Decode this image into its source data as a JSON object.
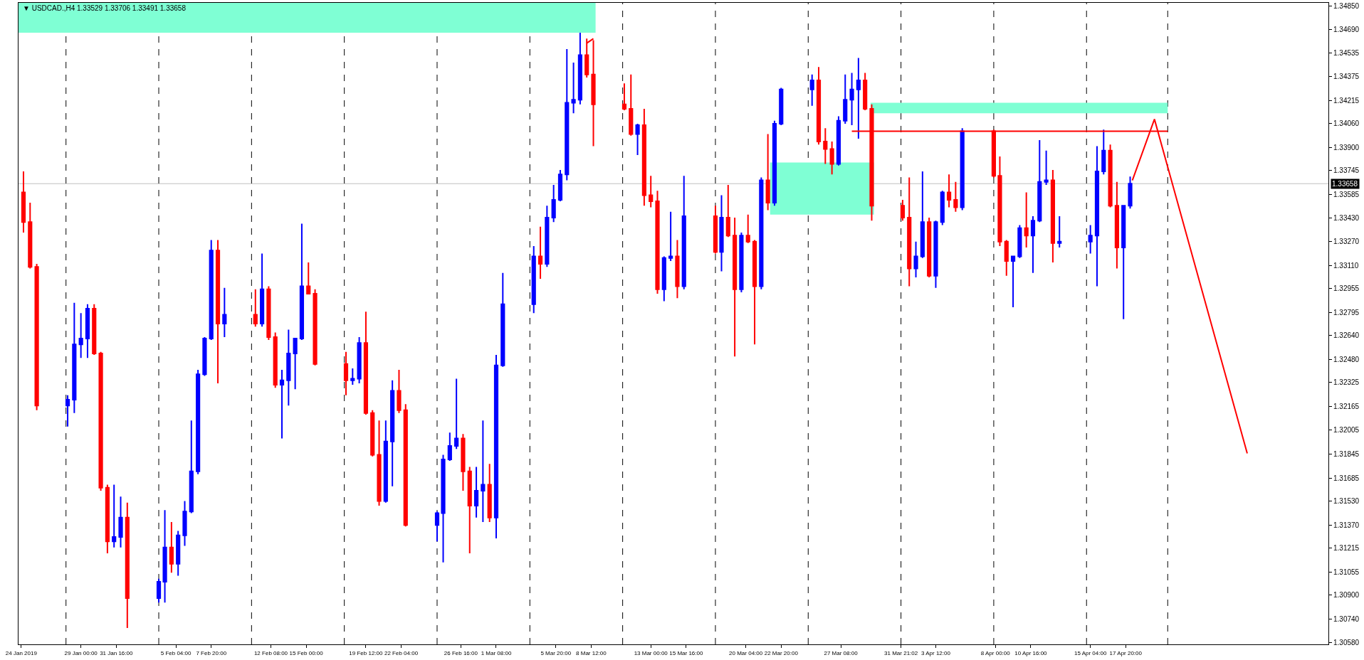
{
  "chart_data": {
    "type": "candlestick",
    "title": "▼ USDCAD.,H4 1.33529 1.33706 1.33491 1.33658",
    "x": [
      "2019-01-24T16:00",
      "2019-01-25T04:00",
      "2019-01-25T16:00",
      "2019-01-28T00:00",
      "2019-01-28T12:00",
      "2019-01-29T00:00",
      "2019-01-29T12:00",
      "2019-01-30T00:00",
      "2019-01-30T12:00",
      "2019-01-31T00:00",
      "2019-01-31T12:00",
      "2019-02-01T00:00",
      "2019-02-01T12:00",
      "2019-02-03T21:00",
      "2019-02-04T08:00",
      "2019-02-04T20:00",
      "2019-02-05T08:00",
      "2019-02-05T20:00",
      "2019-02-06T08:00",
      "2019-02-06T20:00",
      "2019-02-07T08:00",
      "2019-02-07T20:00",
      "2019-02-08T08:00",
      "2019-02-08T20:00",
      "2019-02-11T04:00",
      "2019-02-11T16:00",
      "2019-02-12T04:00",
      "2019-02-12T16:00",
      "2019-02-13T04:00",
      "2019-02-13T16:00",
      "2019-02-14T04:00",
      "2019-02-14T16:00",
      "2019-02-15T04:00",
      "2019-02-15T16:00",
      "2019-02-18T00:00",
      "2019-02-18T12:00",
      "2019-02-19T00:00",
      "2019-02-19T12:00",
      "2019-02-20T00:00",
      "2019-02-20T12:00",
      "2019-02-21T00:00",
      "2019-02-21T12:00",
      "2019-02-22T00:00",
      "2019-02-22T12:00",
      "2019-02-24T21:00",
      "2019-02-25T08:00",
      "2019-02-25T20:00",
      "2019-02-26T08:00",
      "2019-02-26T20:00",
      "2019-02-27T08:00",
      "2019-02-27T20:00",
      "2019-02-28T08:00",
      "2019-02-28T20:00",
      "2019-03-01T08:00",
      "2019-03-01T20:00",
      "2019-03-04T04:00",
      "2019-03-04T16:00",
      "2019-03-05T04:00",
      "2019-03-05T16:00",
      "2019-03-06T04:00",
      "2019-03-06T16:00",
      "2019-03-07T04:00",
      "2019-03-07T16:00",
      "2019-03-08T04:00",
      "2019-03-08T16:00",
      "2019-03-11T00:00",
      "2019-03-11T12:00",
      "2019-03-12T00:00",
      "2019-03-12T12:00",
      "2019-03-13T00:00",
      "2019-03-13T12:00",
      "2019-03-14T00:00",
      "2019-03-14T12:00",
      "2019-03-15T00:00",
      "2019-03-15T12:00",
      "2019-03-17T21:00",
      "2019-03-18T08:00",
      "2019-03-18T20:00",
      "2019-03-19T08:00",
      "2019-03-19T20:00",
      "2019-03-20T08:00",
      "2019-03-20T20:00",
      "2019-03-21T08:00",
      "2019-03-21T20:00",
      "2019-03-22T08:00",
      "2019-03-22T20:00",
      "2019-03-25T04:00",
      "2019-03-25T16:00",
      "2019-03-26T04:00",
      "2019-03-26T16:00",
      "2019-03-27T04:00",
      "2019-03-27T16:00",
      "2019-03-28T04:00",
      "2019-03-28T16:00",
      "2019-03-29T04:00",
      "2019-03-29T16:00",
      "2019-04-01T00:00",
      "2019-04-01T12:00",
      "2019-04-02T00:00",
      "2019-04-02T12:00",
      "2019-04-03T00:00",
      "2019-04-03T12:00",
      "2019-04-04T00:00",
      "2019-04-04T12:00",
      "2019-04-05T00:00",
      "2019-04-05T12:00",
      "2019-04-07T21:00",
      "2019-04-08T08:00",
      "2019-04-08T20:00",
      "2019-04-09T08:00",
      "2019-04-09T20:00",
      "2019-04-10T08:00",
      "2019-04-10T20:00",
      "2019-04-11T08:00",
      "2019-04-11T20:00",
      "2019-04-12T08:00",
      "2019-04-12T20:00",
      "2019-04-15T04:00",
      "2019-04-15T16:00",
      "2019-04-16T04:00",
      "2019-04-16T16:00",
      "2019-04-17T04:00",
      "2019-04-17T16:00",
      "2019-04-18T04:00"
    ],
    "ohlc": [
      [
        1.336,
        1.3374,
        1.3333,
        1.334
      ],
      [
        1.334,
        1.3353,
        1.3309,
        1.331
      ],
      [
        1.331,
        1.3312,
        1.3214,
        1.3217
      ],
      [
        1.3217,
        1.3224,
        1.3203,
        1.3221
      ],
      [
        1.3221,
        1.3286,
        1.3212,
        1.3258
      ],
      [
        1.3258,
        1.3279,
        1.3249,
        1.3262
      ],
      [
        1.3262,
        1.3285,
        1.3249,
        1.3282
      ],
      [
        1.3282,
        1.3285,
        1.3251,
        1.3252
      ],
      [
        1.3252,
        1.3253,
        1.316,
        1.3162
      ],
      [
        1.3162,
        1.3164,
        1.3118,
        1.3126
      ],
      [
        1.3126,
        1.3164,
        1.3122,
        1.3129
      ],
      [
        1.3129,
        1.3156,
        1.3122,
        1.3142
      ],
      [
        1.3142,
        1.3152,
        1.3068,
        1.3088
      ],
      [
        1.3088,
        1.3101,
        1.3085,
        1.3099
      ],
      [
        1.3099,
        1.3147,
        1.3085,
        1.3122
      ],
      [
        1.3122,
        1.3139,
        1.3105,
        1.3111
      ],
      [
        1.3111,
        1.3133,
        1.3103,
        1.313
      ],
      [
        1.313,
        1.3153,
        1.3123,
        1.3146
      ],
      [
        1.3146,
        1.3207,
        1.3145,
        1.3173
      ],
      [
        1.3173,
        1.3241,
        1.3171,
        1.3238
      ],
      [
        1.3238,
        1.3263,
        1.3237,
        1.3262
      ],
      [
        1.3262,
        1.3328,
        1.3261,
        1.3321
      ],
      [
        1.3321,
        1.3328,
        1.3232,
        1.3272
      ],
      [
        1.3272,
        1.3296,
        1.3263,
        1.3278
      ],
      [
        1.3278,
        1.3295,
        1.327,
        1.3272
      ],
      [
        1.3272,
        1.3319,
        1.327,
        1.3295
      ],
      [
        1.3295,
        1.3297,
        1.3261,
        1.3263
      ],
      [
        1.3263,
        1.3266,
        1.3229,
        1.3231
      ],
      [
        1.3231,
        1.3241,
        1.3195,
        1.3234
      ],
      [
        1.3234,
        1.3268,
        1.3217,
        1.3252
      ],
      [
        1.3252,
        1.3262,
        1.3228,
        1.3262
      ],
      [
        1.3262,
        1.3339,
        1.3261,
        1.3297
      ],
      [
        1.3297,
        1.3313,
        1.3292,
        1.3292
      ],
      [
        1.3292,
        1.3295,
        1.3244,
        1.3245
      ],
      [
        1.3245,
        1.3253,
        1.3224,
        1.3234
      ],
      [
        1.3234,
        1.3242,
        1.3231,
        1.3235
      ],
      [
        1.3235,
        1.3263,
        1.3232,
        1.3259
      ],
      [
        1.3259,
        1.328,
        1.3211,
        1.3212
      ],
      [
        1.3212,
        1.3214,
        1.3183,
        1.3184
      ],
      [
        1.3184,
        1.3207,
        1.315,
        1.3153
      ],
      [
        1.3153,
        1.3207,
        1.3152,
        1.3193
      ],
      [
        1.3193,
        1.3234,
        1.3163,
        1.3227
      ],
      [
        1.3227,
        1.3241,
        1.3212,
        1.3214
      ],
      [
        1.3214,
        1.3218,
        1.3136,
        1.3137
      ],
      [
        1.3137,
        1.3146,
        1.3126,
        1.3145
      ],
      [
        1.3145,
        1.3184,
        1.3112,
        1.3181
      ],
      [
        1.3181,
        1.3199,
        1.318,
        1.319
      ],
      [
        1.319,
        1.3235,
        1.3188,
        1.3195
      ],
      [
        1.3195,
        1.3198,
        1.316,
        1.3173
      ],
      [
        1.3173,
        1.3176,
        1.3118,
        1.315
      ],
      [
        1.315,
        1.3176,
        1.3142,
        1.316
      ],
      [
        1.316,
        1.3207,
        1.3139,
        1.3164
      ],
      [
        1.3164,
        1.3178,
        1.3139,
        1.3142
      ],
      [
        1.3142,
        1.3251,
        1.3128,
        1.3244
      ],
      [
        1.3244,
        1.3306,
        1.3243,
        1.3285
      ],
      [
        1.3285,
        1.3324,
        1.3279,
        1.3317
      ],
      [
        1.3317,
        1.3337,
        1.3302,
        1.3312
      ],
      [
        1.3312,
        1.3351,
        1.331,
        1.3343
      ],
      [
        1.3343,
        1.3365,
        1.334,
        1.3355
      ],
      [
        1.3355,
        1.3375,
        1.3354,
        1.3372
      ],
      [
        1.3372,
        1.3456,
        1.3368,
        1.342
      ],
      [
        1.342,
        1.3447,
        1.3413,
        1.3422
      ],
      [
        1.3422,
        1.3467,
        1.3419,
        1.3452
      ],
      [
        1.3452,
        1.3463,
        1.3437,
        1.3439
      ],
      [
        1.3439,
        1.3462,
        1.3391,
        1.3419
      ],
      [
        1.3419,
        1.3433,
        1.3415,
        1.3416
      ],
      [
        1.3416,
        1.3439,
        1.3398,
        1.3399
      ],
      [
        1.3399,
        1.3406,
        1.3385,
        1.3405
      ],
      [
        1.3405,
        1.3416,
        1.3351,
        1.3358
      ],
      [
        1.3358,
        1.3371,
        1.335,
        1.3354
      ],
      [
        1.3354,
        1.3361,
        1.3292,
        1.3295
      ],
      [
        1.3295,
        1.3317,
        1.3287,
        1.3316
      ],
      [
        1.3316,
        1.3347,
        1.3314,
        1.3317
      ],
      [
        1.3317,
        1.3328,
        1.3289,
        1.3297
      ],
      [
        1.3297,
        1.3371,
        1.3295,
        1.3344
      ],
      [
        1.3344,
        1.3351,
        1.3319,
        1.332
      ],
      [
        1.332,
        1.3358,
        1.3307,
        1.3343
      ],
      [
        1.3343,
        1.3365,
        1.333,
        1.3331
      ],
      [
        1.3331,
        1.3343,
        1.325,
        1.3295
      ],
      [
        1.3295,
        1.3333,
        1.3293,
        1.3331
      ],
      [
        1.3331,
        1.3345,
        1.3326,
        1.3327
      ],
      [
        1.3327,
        1.3328,
        1.3258,
        1.3297
      ],
      [
        1.3297,
        1.337,
        1.3295,
        1.3368
      ],
      [
        1.3368,
        1.3399,
        1.3348,
        1.3353
      ],
      [
        1.3353,
        1.3408,
        1.3351,
        1.3406
      ],
      [
        1.3406,
        1.343,
        1.3405,
        1.3429
      ],
      [
        1.3429,
        1.3439,
        1.3418,
        1.3435
      ],
      [
        1.3435,
        1.3444,
        1.3392,
        1.3394
      ],
      [
        1.3394,
        1.3403,
        1.3379,
        1.3389
      ],
      [
        1.3389,
        1.3394,
        1.3372,
        1.3379
      ],
      [
        1.3379,
        1.3411,
        1.3378,
        1.3408
      ],
      [
        1.3408,
        1.3439,
        1.3406,
        1.3422
      ],
      [
        1.3422,
        1.344,
        1.3405,
        1.3429
      ],
      [
        1.3429,
        1.345,
        1.3396,
        1.3435
      ],
      [
        1.3435,
        1.344,
        1.3415,
        1.3416
      ],
      [
        1.3416,
        1.3419,
        1.3341,
        1.3351
      ],
      [
        1.3351,
        1.3355,
        1.3341,
        1.3343
      ],
      [
        1.3343,
        1.337,
        1.3297,
        1.3309
      ],
      [
        1.3309,
        1.3327,
        1.3303,
        1.3317
      ],
      [
        1.3317,
        1.3374,
        1.3316,
        1.334
      ],
      [
        1.334,
        1.3343,
        1.3303,
        1.3304
      ],
      [
        1.3304,
        1.3341,
        1.3296,
        1.334
      ],
      [
        1.334,
        1.3361,
        1.3338,
        1.336
      ],
      [
        1.336,
        1.3372,
        1.335,
        1.3355
      ],
      [
        1.3355,
        1.3367,
        1.3347,
        1.335
      ],
      [
        1.335,
        1.3403,
        1.3348,
        1.3401
      ],
      [
        1.3401,
        1.3402,
        1.337,
        1.3371
      ],
      [
        1.3371,
        1.3384,
        1.3324,
        1.3327
      ],
      [
        1.3327,
        1.3328,
        1.3304,
        1.3314
      ],
      [
        1.3314,
        1.3317,
        1.3283,
        1.3317
      ],
      [
        1.3317,
        1.3338,
        1.3316,
        1.3336
      ],
      [
        1.3336,
        1.336,
        1.3323,
        1.3331
      ],
      [
        1.3331,
        1.3344,
        1.3306,
        1.3341
      ],
      [
        1.3341,
        1.3395,
        1.334,
        1.3367
      ],
      [
        1.3367,
        1.3388,
        1.3365,
        1.3368
      ],
      [
        1.3368,
        1.3375,
        1.3313,
        1.3326
      ],
      [
        1.3326,
        1.3344,
        1.3323,
        1.3327
      ],
      [
        1.3327,
        1.3338,
        1.3319,
        1.3331
      ],
      [
        1.3331,
        1.3391,
        1.3297,
        1.3374
      ],
      [
        1.3374,
        1.3402,
        1.3372,
        1.3388
      ],
      [
        1.3388,
        1.3392,
        1.335,
        1.3351
      ],
      [
        1.3351,
        1.3367,
        1.3309,
        1.3323
      ],
      [
        1.3323,
        1.3351,
        1.3275,
        1.3351
      ],
      [
        1.3351,
        1.33706,
        1.33491,
        1.33658
      ]
    ],
    "colors": [
      "#ff0000",
      "#ff0000",
      "#ff0000",
      "#0000ff",
      "#0000ff",
      "#0000ff",
      "#0000ff",
      "#ff0000",
      "#ff0000",
      "#ff0000",
      "#0000ff",
      "#0000ff",
      "#ff0000",
      "#0000ff",
      "#0000ff",
      "#ff0000",
      "#0000ff",
      "#0000ff",
      "#0000ff",
      "#0000ff",
      "#0000ff",
      "#0000ff",
      "#ff0000",
      "#0000ff",
      "#ff0000",
      "#0000ff",
      "#ff0000",
      "#ff0000",
      "#0000ff",
      "#0000ff",
      "#0000ff",
      "#0000ff",
      "#ff0000",
      "#ff0000",
      "#ff0000",
      "#0000ff",
      "#0000ff",
      "#ff0000",
      "#ff0000",
      "#ff0000",
      "#0000ff",
      "#0000ff",
      "#ff0000",
      "#ff0000",
      "#0000ff",
      "#0000ff",
      "#0000ff",
      "#0000ff",
      "#ff0000",
      "#ff0000",
      "#0000ff",
      "#0000ff",
      "#ff0000",
      "#0000ff",
      "#0000ff",
      "#0000ff",
      "#ff0000",
      "#0000ff",
      "#0000ff",
      "#0000ff",
      "#0000ff",
      "#0000ff",
      "#0000ff",
      "#ff0000",
      "#ff0000",
      "#ff0000",
      "#ff0000",
      "#0000ff",
      "#ff0000",
      "#ff0000",
      "#ff0000",
      "#0000ff",
      "#0000ff",
      "#ff0000",
      "#0000ff",
      "#ff0000",
      "#0000ff",
      "#ff0000",
      "#ff0000",
      "#0000ff",
      "#ff0000",
      "#ff0000",
      "#0000ff",
      "#ff0000",
      "#0000ff",
      "#0000ff",
      "#0000ff",
      "#ff0000",
      "#ff0000",
      "#ff0000",
      "#0000ff",
      "#0000ff",
      "#0000ff",
      "#0000ff",
      "#ff0000",
      "#ff0000",
      "#ff0000",
      "#ff0000",
      "#0000ff",
      "#0000ff",
      "#ff0000",
      "#0000ff",
      "#0000ff",
      "#ff0000",
      "#ff0000",
      "#0000ff",
      "#ff0000",
      "#ff0000",
      "#ff0000",
      "#0000ff",
      "#0000ff",
      "#ff0000",
      "#0000ff",
      "#0000ff",
      "#0000ff",
      "#ff0000",
      "#0000ff",
      "#0000ff",
      "#0000ff",
      "#0000ff",
      "#ff0000",
      "#ff0000",
      "#0000ff",
      "#0000ff"
    ],
    "series": [
      {
        "type": "area",
        "color": "#7fffd4",
        "x": [
          "2019-01-24T07:00",
          "2019-03-08T20:00"
        ],
        "values": [
          null,
          null
        ],
        "lower": [
          1.3467,
          1.3467
        ],
        "upper": [
          1.3487,
          1.3487
        ]
      },
      {
        "type": "area",
        "color": "#7fffd4",
        "x": [
          "2019-03-22T00:00",
          "2019-03-29T20:00"
        ],
        "values": [
          null,
          null
        ],
        "lower": [
          1.3345,
          1.3345
        ],
        "upper": [
          1.338,
          1.338
        ]
      },
      {
        "type": "area",
        "color": "#7fffd4",
        "x": [
          "2019-03-29T14:00",
          "2019-04-21T00:00"
        ],
        "values": [
          null,
          null
        ],
        "lower": [
          1.3413,
          1.3413
        ],
        "upper": [
          1.342,
          1.342
        ]
      },
      {
        "type": "line",
        "color": "#ff0000",
        "x": [
          "2019-03-28T04:00",
          "2019-04-21T00:00"
        ],
        "values": [
          1.3401,
          1.3401
        ]
      },
      {
        "type": "line",
        "color": "#ff0000",
        "x": [
          "2019-04-18T08:00",
          "2019-04-20T00:00",
          "2019-04-27T00:00"
        ],
        "values": [
          1.3368,
          1.3409,
          1.3185
        ]
      },
      {
        "type": "line",
        "color": "#ff0000",
        "x": [
          "2019-03-08T04:00",
          "2019-03-08T16:00"
        ],
        "values": [
          1.346,
          1.3463
        ]
      }
    ],
    "xlim": [
      "2019-01-24T07:00",
      "2019-05-03T03:00"
    ],
    "xticks": [
      {
        "value": "2019-01-24T12:00",
        "label": "24 Jan 2019"
      },
      {
        "value": "2019-01-29T00:00",
        "label": "29 Jan 00:00"
      },
      {
        "value": "2019-01-31T16:00",
        "label": "31 Jan 16:00"
      },
      {
        "value": "2019-02-05T04:00",
        "label": "5 Feb 04:00"
      },
      {
        "value": "2019-02-07T20:00",
        "label": "7 Feb 20:00"
      },
      {
        "value": "2019-02-12T08:00",
        "label": "12 Feb 08:00"
      },
      {
        "value": "2019-02-15T00:00",
        "label": "15 Feb 00:00"
      },
      {
        "value": "2019-02-19T12:00",
        "label": "19 Feb 12:00"
      },
      {
        "value": "2019-02-22T04:00",
        "label": "22 Feb 04:00"
      },
      {
        "value": "2019-02-26T16:00",
        "label": "26 Feb 16:00"
      },
      {
        "value": "2019-03-01T08:00",
        "label": "1 Mar 08:00"
      },
      {
        "value": "2019-03-05T20:00",
        "label": "5 Mar 20:00"
      },
      {
        "value": "2019-03-08T12:00",
        "label": "8 Mar 12:00"
      },
      {
        "value": "2019-03-13T00:00",
        "label": "13 Mar 00:00"
      },
      {
        "value": "2019-03-15T16:00",
        "label": "15 Mar 16:00"
      },
      {
        "value": "2019-03-20T04:00",
        "label": "20 Mar 04:00"
      },
      {
        "value": "2019-03-22T20:00",
        "label": "22 Mar 20:00"
      },
      {
        "value": "2019-03-27T08:00",
        "label": "27 Mar 08:00"
      },
      {
        "value": "2019-03-31T21:02",
        "label": "31 Mar 21:02"
      },
      {
        "value": "2019-04-03T12:00",
        "label": "3 Apr 12:00"
      },
      {
        "value": "2019-04-08T00:00",
        "label": "8 Apr 00:00"
      },
      {
        "value": "2019-04-10T16:00",
        "label": "10 Apr 16:00"
      },
      {
        "value": "2019-04-15T04:00",
        "label": "15 Apr 04:00"
      },
      {
        "value": "2019-04-17T20:00",
        "label": "17 Apr 20:00"
      }
    ],
    "ylim": [
      1.3057,
      1.3487
    ],
    "yticks": [
      {
        "value": 1.3058,
        "label": "1.30580"
      },
      {
        "value": 1.3074,
        "label": "1.30740"
      },
      {
        "value": 1.309,
        "label": "1.30900"
      },
      {
        "value": 1.31055,
        "label": "1.31055"
      },
      {
        "value": 1.31215,
        "label": "1.31215"
      },
      {
        "value": 1.3137,
        "label": "1.31370"
      },
      {
        "value": 1.3153,
        "label": "1.31530"
      },
      {
        "value": 1.31685,
        "label": "1.31685"
      },
      {
        "value": 1.31845,
        "label": "1.31845"
      },
      {
        "value": 1.32005,
        "label": "1.32005"
      },
      {
        "value": 1.32165,
        "label": "1.32165"
      },
      {
        "value": 1.32325,
        "label": "1.32325"
      },
      {
        "value": 1.3248,
        "label": "1.32480"
      },
      {
        "value": 1.3264,
        "label": "1.32640"
      },
      {
        "value": 1.32795,
        "label": "1.32795"
      },
      {
        "value": 1.32955,
        "label": "1.32955"
      },
      {
        "value": 1.3311,
        "label": "1.33110"
      },
      {
        "value": 1.3327,
        "label": "1.33270"
      },
      {
        "value": 1.3343,
        "label": "1.33430"
      },
      {
        "value": 1.33585,
        "label": "1.33585"
      },
      {
        "value": 1.33745,
        "label": "1.33745"
      },
      {
        "value": 1.339,
        "label": "1.33900"
      },
      {
        "value": 1.3406,
        "label": "1.34060"
      },
      {
        "value": 1.34215,
        "label": "1.34215"
      },
      {
        "value": 1.34375,
        "label": "1.34375"
      },
      {
        "value": 1.34535,
        "label": "1.34535"
      },
      {
        "value": 1.3469,
        "label": "1.34690"
      },
      {
        "value": 1.3485,
        "label": "1.34850"
      }
    ],
    "ref_lines": [
      {
        "axis": "y",
        "value": 1.33658,
        "label": "1.33658",
        "color": "#c0c0c0"
      },
      {
        "axis": "x",
        "value": "2019-01-27T21:00",
        "line_style": "dashed",
        "color": "#000000"
      },
      {
        "axis": "x",
        "value": "2019-02-03T21:00",
        "line_style": "dashed",
        "color": "#000000"
      },
      {
        "axis": "x",
        "value": "2019-02-10T21:00",
        "line_style": "dashed",
        "color": "#000000"
      },
      {
        "axis": "x",
        "value": "2019-02-17T21:00",
        "line_style": "dashed",
        "color": "#000000"
      },
      {
        "axis": "x",
        "value": "2019-02-24T21:00",
        "line_style": "dashed",
        "color": "#000000"
      },
      {
        "axis": "x",
        "value": "2019-03-03T21:00",
        "line_style": "dashed",
        "color": "#000000"
      },
      {
        "axis": "x",
        "value": "2019-03-10T21:00",
        "line_style": "dashed",
        "color": "#000000"
      },
      {
        "axis": "x",
        "value": "2019-03-17T21:00",
        "line_style": "dashed",
        "color": "#000000"
      },
      {
        "axis": "x",
        "value": "2019-03-24T21:00",
        "line_style": "dashed",
        "color": "#000000"
      },
      {
        "axis": "x",
        "value": "2019-03-31T21:00",
        "line_style": "dashed",
        "color": "#000000"
      },
      {
        "axis": "x",
        "value": "2019-04-07T21:00",
        "line_style": "dashed",
        "color": "#000000"
      },
      {
        "axis": "x",
        "value": "2019-04-14T21:00",
        "line_style": "dashed",
        "color": "#000000"
      },
      {
        "axis": "x",
        "value": "2019-04-21T00:00",
        "line_style": "dashed",
        "color": "#000000"
      }
    ]
  }
}
